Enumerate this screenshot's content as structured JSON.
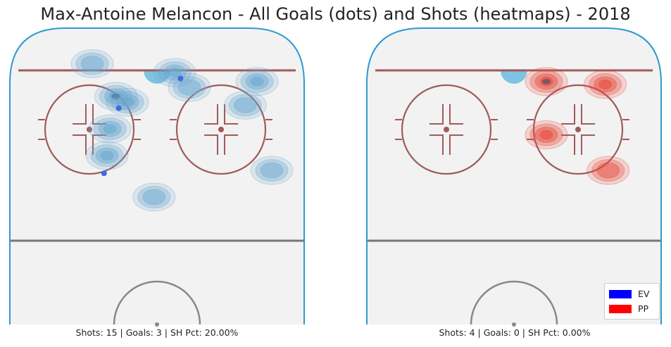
{
  "title": "Max-Antoine Melancon - All Goals (dots) and Shots (heatmaps) - 2018",
  "legend": [
    {
      "label": "EV",
      "color": "#0000ff"
    },
    {
      "label": "PP",
      "color": "#ff0000"
    }
  ],
  "chart_data": [
    {
      "type": "scatter",
      "strength": "EV",
      "shots": 15,
      "goals": 3,
      "sh_pct": "20.00%",
      "caption": "Shots: 15 | Goals: 3 | SH Pct: 20.00%",
      "goal_color": "#4169e1",
      "heat_color": "#6aa6cf",
      "shot_density": [
        {
          "x": 56,
          "y": 85,
          "level": 2
        },
        {
          "x": 61,
          "y": 80,
          "level": 1
        },
        {
          "x": 36,
          "y": 77,
          "level": 3
        },
        {
          "x": 40,
          "y": 75,
          "level": 2
        },
        {
          "x": 34,
          "y": 66,
          "level": 2
        },
        {
          "x": 33,
          "y": 57,
          "level": 2
        },
        {
          "x": 84,
          "y": 82,
          "level": 2
        },
        {
          "x": 80,
          "y": 74,
          "level": 1
        },
        {
          "x": 28,
          "y": 88,
          "level": 1
        },
        {
          "x": 89,
          "y": 52,
          "level": 1
        },
        {
          "x": 49,
          "y": 43,
          "level": 1
        }
      ],
      "goals_xy": [
        {
          "x": 58,
          "y": 83
        },
        {
          "x": 37,
          "y": 73
        },
        {
          "x": 32,
          "y": 51
        }
      ]
    },
    {
      "type": "scatter",
      "strength": "PP",
      "shots": 4,
      "goals": 0,
      "sh_pct": "0.00%",
      "caption": "Shots: 4 | Goals: 0 | SH Pct: 0.00%",
      "goal_color": "#ff0000",
      "heat_color": "#e8483a",
      "shot_density": [
        {
          "x": 61,
          "y": 82,
          "level": 3
        },
        {
          "x": 81,
          "y": 81,
          "level": 2
        },
        {
          "x": 61,
          "y": 64,
          "level": 2
        },
        {
          "x": 82,
          "y": 52,
          "level": 1
        }
      ],
      "goals_xy": []
    }
  ]
}
